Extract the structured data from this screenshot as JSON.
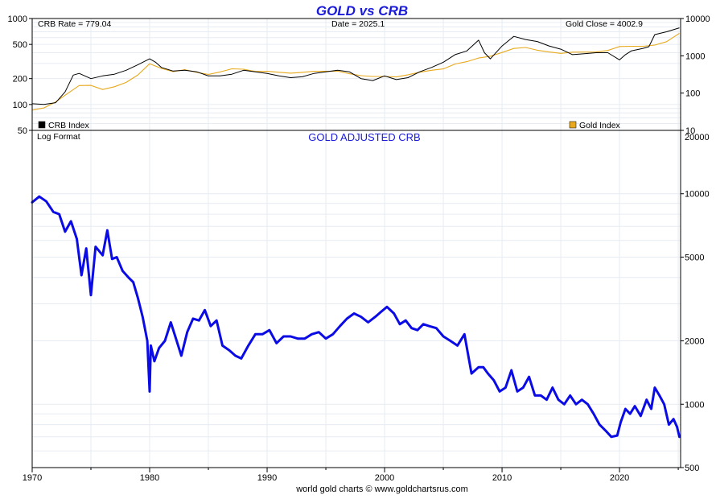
{
  "title": "GOLD vs CRB",
  "info": {
    "crb_rate": "CRB Rate = 779.04",
    "date": "Date = 2025.1",
    "gold_close": "Gold Close = 4002.9"
  },
  "footer": "world gold charts © www.goldchartsrus.com",
  "colors": {
    "crb": "#000000",
    "gold": "#e8a91c",
    "adjusted": "#0b0be6",
    "title": "#1a1ad9",
    "grid": "#e6ecf2"
  },
  "chart_data": [
    {
      "type": "line",
      "title": "GOLD vs CRB",
      "x_axis": {
        "range": [
          1970,
          2025.2
        ],
        "tick_labels": [
          "1970",
          "1980",
          "1990",
          "2000",
          "2010",
          "2020"
        ]
      },
      "y_left": {
        "scale": "log",
        "range": [
          50,
          1000
        ],
        "tick_labels": [
          "1000",
          "500",
          "200",
          "100",
          "50"
        ]
      },
      "y_right": {
        "scale": "log",
        "range": [
          10,
          10000
        ],
        "tick_labels": [
          "10000",
          "1000",
          "100",
          "10"
        ]
      },
      "legend": [
        {
          "label": "CRB Index",
          "placement": "bottom-left"
        },
        {
          "label": "Gold Index",
          "placement": "bottom-right"
        }
      ],
      "series": [
        {
          "name": "CRB Index",
          "axis": "left",
          "x": [
            1970,
            1971,
            1972,
            1972.8,
            1973.5,
            1974,
            1975,
            1976,
            1977,
            1978,
            1979,
            1980,
            1980.5,
            1981,
            1982,
            1983,
            1984,
            1985,
            1986,
            1987,
            1988,
            1989,
            1990,
            1991,
            1992,
            1993,
            1994,
            1995,
            1996,
            1997,
            1998,
            1999,
            2000,
            2001,
            2002,
            2003,
            2004,
            2005,
            2006,
            2007,
            2008,
            2008.5,
            2009,
            2010,
            2011,
            2012,
            2013,
            2014,
            2015,
            2016,
            2017,
            2018,
            2019,
            2020,
            2020.5,
            2021,
            2022,
            2022.5,
            2023,
            2024,
            2025.1
          ],
          "values": [
            102,
            100,
            105,
            140,
            220,
            230,
            200,
            215,
            225,
            250,
            290,
            340,
            310,
            270,
            245,
            250,
            240,
            215,
            215,
            225,
            250,
            240,
            230,
            215,
            205,
            210,
            230,
            240,
            250,
            240,
            200,
            190,
            215,
            195,
            205,
            240,
            270,
            310,
            380,
            420,
            560,
            400,
            340,
            480,
            620,
            570,
            540,
            480,
            440,
            380,
            390,
            400,
            400,
            330,
            380,
            420,
            450,
            470,
            650,
            700,
            779
          ]
        },
        {
          "name": "Gold Index",
          "axis": "right",
          "x": [
            1970,
            1971,
            1972,
            1973,
            1974,
            1975,
            1976,
            1977,
            1978,
            1979,
            1980,
            1981,
            1982,
            1983,
            1984,
            1985,
            1986,
            1987,
            1988,
            1989,
            1990,
            1991,
            1992,
            1993,
            1994,
            1995,
            1996,
            1997,
            1998,
            1999,
            2000,
            2001,
            2002,
            2003,
            2004,
            2005,
            2006,
            2007,
            2008,
            2009,
            2010,
            2011,
            2012,
            2013,
            2014,
            2015,
            2016,
            2017,
            2018,
            2019,
            2020,
            2021,
            2022,
            2023,
            2024,
            2025.1
          ],
          "values": [
            35,
            40,
            58,
            97,
            159,
            161,
            125,
            148,
            193,
            307,
            612,
            460,
            376,
            424,
            361,
            317,
            368,
            447,
            437,
            381,
            383,
            362,
            343,
            360,
            384,
            384,
            388,
            331,
            294,
            279,
            279,
            271,
            310,
            363,
            409,
            445,
            604,
            696,
            872,
            973,
            1225,
            1571,
            1669,
            1411,
            1266,
            1160,
            1251,
            1257,
            1268,
            1393,
            1770,
            1799,
            1800,
            1943,
            2386,
            4003
          ]
        }
      ]
    },
    {
      "type": "line",
      "title": "GOLD ADJUSTED CRB",
      "scale_note": "Log Format",
      "x_axis": {
        "range": [
          1970,
          2025.2
        ],
        "tick_labels": [
          "1970",
          "1980",
          "1990",
          "2000",
          "2010",
          "2020"
        ]
      },
      "y_right": {
        "scale": "log",
        "range": [
          500,
          20000
        ],
        "tick_labels": [
          "20000",
          "10000",
          "5000",
          "2000",
          "1000",
          "500"
        ]
      },
      "series": [
        {
          "name": "GOLD ADJUSTED CRB",
          "axis": "right",
          "x": [
            1970,
            1970.6,
            1971.2,
            1971.8,
            1972.3,
            1972.8,
            1973.3,
            1973.8,
            1974.2,
            1974.6,
            1975.0,
            1975.4,
            1976.0,
            1976.4,
            1976.8,
            1977.2,
            1977.7,
            1978.2,
            1978.6,
            1979.0,
            1979.4,
            1979.8,
            1980.0,
            1980.1,
            1980.4,
            1980.8,
            1981.3,
            1981.8,
            1982.3,
            1982.7,
            1983.2,
            1983.7,
            1984.2,
            1984.7,
            1985.2,
            1985.7,
            1986.2,
            1986.8,
            1987.3,
            1987.8,
            1988.4,
            1989.0,
            1989.6,
            1990.2,
            1990.8,
            1991.4,
            1992.0,
            1992.6,
            1993.2,
            1993.8,
            1994.4,
            1995.0,
            1995.6,
            1996.2,
            1996.8,
            1997.4,
            1998.0,
            1998.6,
            1999.2,
            1999.7,
            2000.2,
            2000.8,
            2001.3,
            2001.8,
            2002.3,
            2002.8,
            2003.3,
            2003.8,
            2004.4,
            2005.0,
            2005.6,
            2006.2,
            2006.8,
            2007.4,
            2008.0,
            2008.4,
            2008.8,
            2009.3,
            2009.8,
            2010.3,
            2010.8,
            2011.3,
            2011.8,
            2012.3,
            2012.8,
            2013.3,
            2013.8,
            2014.3,
            2014.8,
            2015.3,
            2015.8,
            2016.3,
            2016.8,
            2017.3,
            2017.8,
            2018.3,
            2018.8,
            2019.3,
            2019.8,
            2020.1,
            2020.5,
            2020.9,
            2021.3,
            2021.8,
            2022.3,
            2022.7,
            2023.0,
            2023.4,
            2023.8,
            2024.2,
            2024.6,
            2024.9,
            2025.1
          ],
          "values": [
            9100,
            9700,
            9200,
            8200,
            8000,
            6600,
            7400,
            6100,
            4100,
            5500,
            3300,
            5600,
            5100,
            6700,
            4900,
            5000,
            4300,
            4000,
            3800,
            3200,
            2600,
            2000,
            1150,
            1900,
            1600,
            1850,
            2000,
            2450,
            2000,
            1700,
            2200,
            2550,
            2500,
            2800,
            2350,
            2500,
            1900,
            1800,
            1700,
            1650,
            1900,
            2150,
            2150,
            2250,
            1950,
            2100,
            2100,
            2050,
            2050,
            2150,
            2200,
            2050,
            2150,
            2350,
            2550,
            2700,
            2600,
            2450,
            2600,
            2750,
            2900,
            2700,
            2400,
            2500,
            2300,
            2250,
            2400,
            2350,
            2300,
            2100,
            2000,
            1900,
            2150,
            1400,
            1500,
            1500,
            1400,
            1300,
            1150,
            1200,
            1450,
            1150,
            1200,
            1350,
            1100,
            1100,
            1050,
            1200,
            1050,
            1000,
            1100,
            1000,
            1050,
            1000,
            900,
            800,
            750,
            700,
            710,
            820,
            950,
            900,
            980,
            880,
            1050,
            950,
            1200,
            1100,
            1000,
            800,
            850,
            780,
            700
          ]
        }
      ]
    }
  ]
}
